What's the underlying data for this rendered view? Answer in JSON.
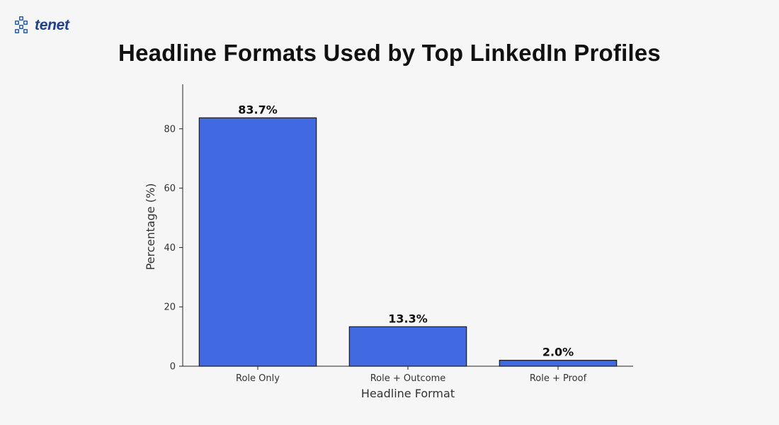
{
  "logo": {
    "text": "tenet",
    "color": "#1f58d9"
  },
  "chart_data": {
    "type": "bar",
    "title": "Headline Formats Used by Top LinkedIn Profiles",
    "categories": [
      "Role Only",
      "Role + Outcome",
      "Role + Proof"
    ],
    "values": [
      83.7,
      13.3,
      2.0
    ],
    "data_labels": [
      "83.7%",
      "13.3%",
      "2.0%"
    ],
    "xlabel": "Headline Format",
    "ylabel": "Percentage (%)",
    "ylim": [
      0,
      95
    ],
    "yticks": [
      0,
      20,
      40,
      60,
      80
    ],
    "grid": false,
    "bar_color": "#4169e1",
    "edge_color": "#1a1a1a"
  }
}
